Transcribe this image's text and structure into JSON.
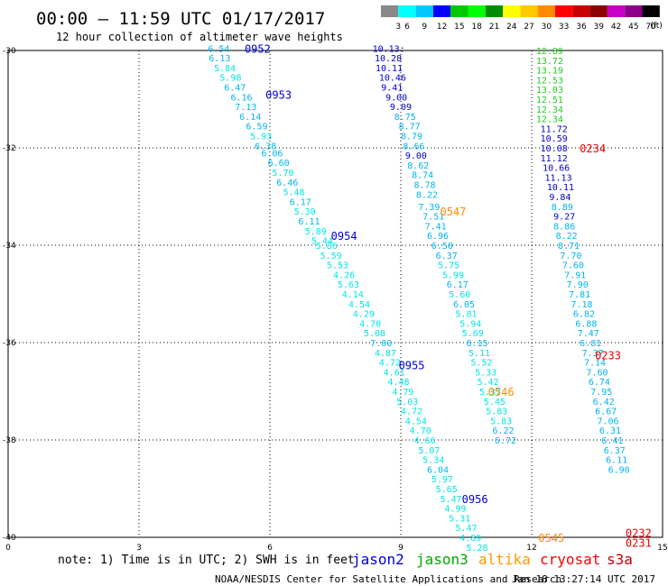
{
  "header": {
    "title": "00:00 – 11:59 UTC 01/17/2017",
    "subtitle": "12 hour collection of altimeter wave heights"
  },
  "colorbar": {
    "unit": "(ft)",
    "ticks": [
      "3",
      "6",
      "9",
      "12",
      "15",
      "18",
      "21",
      "24",
      "27",
      "30",
      "33",
      "36",
      "39",
      "42",
      "45",
      "70"
    ],
    "colors": [
      "#888888",
      "#00ffff",
      "#00c8ff",
      "#0000ff",
      "#00c800",
      "#00ff00",
      "#008c00",
      "#ffff00",
      "#ffc800",
      "#ff8c00",
      "#ff0000",
      "#c80000",
      "#8c0000",
      "#c800c8",
      "#8c008c",
      "#000000"
    ]
  },
  "footer": {
    "note": "note: 1) Time is in UTC; 2) SWH is in feet",
    "credit": "NOAA/NESDIS Center for Satellite Applications and Research",
    "timestamp": "Jan 18 13:27:14 UTC 2017",
    "legend": [
      {
        "name": "jason2",
        "color": "#0000dd"
      },
      {
        "name": "jason3",
        "color": "#00aa00"
      },
      {
        "name": "altika",
        "color": "#ff9900"
      },
      {
        "name": "cryosat",
        "color": "#ff0000"
      },
      {
        "name": "s3a",
        "color": "#cc0000"
      }
    ]
  },
  "chart_data": {
    "type": "scatter",
    "title": "00:00 – 11:59 UTC 01/17/2017",
    "subtitle": "12 hour collection of altimeter wave heights",
    "xlim": [
      0,
      15
    ],
    "ylim": [
      -40,
      -30
    ],
    "xticks": [
      "0",
      "3",
      "6",
      "9",
      "12",
      "15"
    ],
    "yticks": [
      "-30",
      "-32",
      "-34",
      "-36",
      "-38",
      "-40"
    ],
    "grid": true,
    "legend_position": "bottom",
    "series": [
      {
        "name": "jason2",
        "track_labels": [
          {
            "text": "0952",
            "x": 5.42,
            "y": -29.95
          },
          {
            "text": "0953",
            "x": 5.9,
            "y": -30.9
          },
          {
            "text": "0954",
            "x": 7.4,
            "y": -33.8
          },
          {
            "text": "0955",
            "x": 8.95,
            "y": -36.45
          },
          {
            "text": "0956",
            "x": 10.4,
            "y": -39.2
          }
        ],
        "points": [
          {
            "x": 4.58,
            "y": -29.95,
            "v": "6.54"
          },
          {
            "x": 4.6,
            "y": -30.15,
            "v": "6.13"
          },
          {
            "x": 4.72,
            "y": -30.35,
            "v": "5.84"
          },
          {
            "x": 4.85,
            "y": -30.55,
            "v": "5.98"
          },
          {
            "x": 4.95,
            "y": -30.75,
            "v": "6.47"
          },
          {
            "x": 5.1,
            "y": -30.95,
            "v": "6.16"
          },
          {
            "x": 5.2,
            "y": -31.15,
            "v": "7.13"
          },
          {
            "x": 5.3,
            "y": -31.35,
            "v": "6.14"
          },
          {
            "x": 5.45,
            "y": -31.55,
            "v": "6.59"
          },
          {
            "x": 5.55,
            "y": -31.75,
            "v": "5.93"
          },
          {
            "x": 5.65,
            "y": -31.95,
            "v": "6.38"
          },
          {
            "x": 5.8,
            "y": -32.1,
            "v": "6.06"
          },
          {
            "x": 5.95,
            "y": -32.3,
            "v": "6.60"
          },
          {
            "x": 6.05,
            "y": -32.5,
            "v": "5.70"
          },
          {
            "x": 6.15,
            "y": -32.7,
            "v": "6.46"
          },
          {
            "x": 6.3,
            "y": -32.9,
            "v": "5.48"
          },
          {
            "x": 6.45,
            "y": -33.1,
            "v": "6.17"
          },
          {
            "x": 6.55,
            "y": -33.3,
            "v": "5.30"
          },
          {
            "x": 6.65,
            "y": -33.5,
            "v": "6.11"
          },
          {
            "x": 6.8,
            "y": -33.7,
            "v": "5.89"
          },
          {
            "x": 6.95,
            "y": -33.9,
            "v": "5.44"
          },
          {
            "x": 7.05,
            "y": -34.0,
            "v": "5.86"
          },
          {
            "x": 7.15,
            "y": -34.2,
            "v": "5.59"
          },
          {
            "x": 7.3,
            "y": -34.4,
            "v": "5.53"
          },
          {
            "x": 7.45,
            "y": -34.6,
            "v": "4.26"
          },
          {
            "x": 7.55,
            "y": -34.8,
            "v": "5.63"
          },
          {
            "x": 7.65,
            "y": -35.0,
            "v": "4.14"
          },
          {
            "x": 7.8,
            "y": -35.2,
            "v": "4.54"
          },
          {
            "x": 7.9,
            "y": -35.4,
            "v": "4.29"
          },
          {
            "x": 8.05,
            "y": -35.6,
            "v": "4.70"
          },
          {
            "x": 8.15,
            "y": -35.8,
            "v": "5.08"
          },
          {
            "x": 8.3,
            "y": -36.0,
            "v": "7.00"
          },
          {
            "x": 8.4,
            "y": -36.2,
            "v": "4.87"
          },
          {
            "x": 8.5,
            "y": -36.4,
            "v": "4.72"
          },
          {
            "x": 8.6,
            "y": -36.6,
            "v": "4.61"
          },
          {
            "x": 8.7,
            "y": -36.8,
            "v": "4.48"
          },
          {
            "x": 8.8,
            "y": -37.0,
            "v": "4.79"
          },
          {
            "x": 8.9,
            "y": -37.2,
            "v": "5.03"
          },
          {
            "x": 9.0,
            "y": -37.4,
            "v": "4.72"
          },
          {
            "x": 9.1,
            "y": -37.6,
            "v": "4.54"
          },
          {
            "x": 9.2,
            "y": -37.8,
            "v": "4.70"
          },
          {
            "x": 9.3,
            "y": -38.0,
            "v": "4.66"
          },
          {
            "x": 9.4,
            "y": -38.2,
            "v": "5.07"
          },
          {
            "x": 9.5,
            "y": -38.4,
            "v": "5.34"
          },
          {
            "x": 9.6,
            "y": -38.6,
            "v": "6.04"
          },
          {
            "x": 9.7,
            "y": -38.8,
            "v": "5.97"
          },
          {
            "x": 9.8,
            "y": -39.0,
            "v": "5.65"
          },
          {
            "x": 9.9,
            "y": -39.2,
            "v": "5.47"
          },
          {
            "x": 10.0,
            "y": -39.4,
            "v": "4.99"
          },
          {
            "x": 10.1,
            "y": -39.6,
            "v": "5.31"
          },
          {
            "x": 10.25,
            "y": -39.8,
            "v": "5.47"
          },
          {
            "x": 10.35,
            "y": -40.0,
            "v": "4.89"
          },
          {
            "x": 10.5,
            "y": -40.2,
            "v": "5.28"
          }
        ]
      },
      {
        "name": "altika",
        "track_labels": [
          {
            "text": "0547",
            "x": 9.9,
            "y": -33.3
          },
          {
            "text": "0546",
            "x": 11.0,
            "y": -37.0
          },
          {
            "text": "0545",
            "x": 12.15,
            "y": -40.0
          }
        ],
        "points": [
          {
            "x": 8.35,
            "y": -29.95,
            "v": "10.13:"
          },
          {
            "x": 8.4,
            "y": -30.15,
            "v": "10.28"
          },
          {
            "x": 8.42,
            "y": -30.35,
            "v": "10.11"
          },
          {
            "x": 8.5,
            "y": -30.55,
            "v": "10.46"
          },
          {
            "x": 8.55,
            "y": -30.75,
            "v": "9.41"
          },
          {
            "x": 8.65,
            "y": -30.95,
            "v": "9.00"
          },
          {
            "x": 8.75,
            "y": -31.15,
            "v": "9.09"
          },
          {
            "x": 8.85,
            "y": -31.35,
            "v": "8.75"
          },
          {
            "x": 8.95,
            "y": -31.55,
            "v": "8.77"
          },
          {
            "x": 9.0,
            "y": -31.75,
            "v": "8.79"
          },
          {
            "x": 9.05,
            "y": -31.95,
            "v": "8.66"
          },
          {
            "x": 9.1,
            "y": -32.15,
            "v": "9.00"
          },
          {
            "x": 9.15,
            "y": -32.35,
            "v": "8.62"
          },
          {
            "x": 9.25,
            "y": -32.55,
            "v": "8.74"
          },
          {
            "x": 9.3,
            "y": -32.75,
            "v": "8.78"
          },
          {
            "x": 9.35,
            "y": -32.95,
            "v": "8.22"
          },
          {
            "x": 9.4,
            "y": -33.2,
            "v": "7.39"
          },
          {
            "x": 9.5,
            "y": -33.4,
            "v": "7.51"
          },
          {
            "x": 9.55,
            "y": -33.6,
            "v": "7.41"
          },
          {
            "x": 9.6,
            "y": -33.8,
            "v": "6.96"
          },
          {
            "x": 9.7,
            "y": -34.0,
            "v": "6.50"
          },
          {
            "x": 9.8,
            "y": -34.2,
            "v": "6.37"
          },
          {
            "x": 9.85,
            "y": -34.4,
            "v": "5.75"
          },
          {
            "x": 9.95,
            "y": -34.6,
            "v": "5.99"
          },
          {
            "x": 10.05,
            "y": -34.8,
            "v": "6.17"
          },
          {
            "x": 10.1,
            "y": -35.0,
            "v": "5.60"
          },
          {
            "x": 10.2,
            "y": -35.2,
            "v": "6.05"
          },
          {
            "x": 10.25,
            "y": -35.4,
            "v": "5.81"
          },
          {
            "x": 10.35,
            "y": -35.6,
            "v": "5.94"
          },
          {
            "x": 10.4,
            "y": -35.8,
            "v": "5.69"
          },
          {
            "x": 10.5,
            "y": -36.0,
            "v": "6.15"
          },
          {
            "x": 10.55,
            "y": -36.2,
            "v": "5.11"
          },
          {
            "x": 10.6,
            "y": -36.4,
            "v": "5.52"
          },
          {
            "x": 10.7,
            "y": -36.6,
            "v": "5.33"
          },
          {
            "x": 10.75,
            "y": -36.8,
            "v": "5.42"
          },
          {
            "x": 10.8,
            "y": -37.0,
            "v": "5.37"
          },
          {
            "x": 10.9,
            "y": -37.2,
            "v": "5.45"
          },
          {
            "x": 10.95,
            "y": -37.4,
            "v": "5.83"
          },
          {
            "x": 11.05,
            "y": -37.6,
            "v": "5.83"
          },
          {
            "x": 11.1,
            "y": -37.8,
            "v": "6.22"
          },
          {
            "x": 11.15,
            "y": -38.0,
            "v": "6.72"
          }
        ]
      },
      {
        "name": "cryosat",
        "track_labels": [
          {
            "text": "0234",
            "x": 13.1,
            "y": -32.0
          },
          {
            "text": "0233",
            "x": 13.45,
            "y": -36.25
          },
          {
            "text": "0232",
            "x": 14.15,
            "y": -39.9
          },
          {
            "text": "0231",
            "x": 14.15,
            "y": -40.1
          }
        ],
        "points": [
          {
            "x": 12.1,
            "y": -30.0,
            "v": "12.89"
          },
          {
            "x": 12.1,
            "y": -30.2,
            "v": "13.72"
          },
          {
            "x": 12.1,
            "y": -30.4,
            "v": "13.19"
          },
          {
            "x": 12.1,
            "y": -30.6,
            "v": "12.53"
          },
          {
            "x": 12.1,
            "y": -30.8,
            "v": "13.03"
          },
          {
            "x": 12.1,
            "y": -31.0,
            "v": "12.51"
          },
          {
            "x": 12.1,
            "y": -31.2,
            "v": "12.34"
          },
          {
            "x": 12.1,
            "y": -31.4,
            "v": "12.34"
          },
          {
            "x": 12.2,
            "y": -31.6,
            "v": "11.72"
          },
          {
            "x": 12.2,
            "y": -31.8,
            "v": "10.59"
          },
          {
            "x": 12.2,
            "y": -32.0,
            "v": "10.08"
          },
          {
            "x": 12.2,
            "y": -32.2,
            "v": "11.12"
          },
          {
            "x": 12.25,
            "y": -32.4,
            "v": "10.66"
          },
          {
            "x": 12.3,
            "y": -32.6,
            "v": "11.13"
          },
          {
            "x": 12.35,
            "y": -32.8,
            "v": "10.11"
          },
          {
            "x": 12.4,
            "y": -33.0,
            "v": "9.84"
          },
          {
            "x": 12.45,
            "y": -33.2,
            "v": "8.89"
          },
          {
            "x": 12.5,
            "y": -33.4,
            "v": "9.27"
          },
          {
            "x": 12.5,
            "y": -33.6,
            "v": "8.86"
          },
          {
            "x": 12.55,
            "y": -33.8,
            "v": "8.22"
          },
          {
            "x": 12.6,
            "y": -34.0,
            "v": "8.71"
          },
          {
            "x": 12.65,
            "y": -34.2,
            "v": "7.70"
          },
          {
            "x": 12.7,
            "y": -34.4,
            "v": "7.60"
          },
          {
            "x": 12.75,
            "y": -34.6,
            "v": "7.91"
          },
          {
            "x": 12.8,
            "y": -34.8,
            "v": "7.90"
          },
          {
            "x": 12.85,
            "y": -35.0,
            "v": "7.81"
          },
          {
            "x": 12.9,
            "y": -35.2,
            "v": "7.18"
          },
          {
            "x": 12.95,
            "y": -35.4,
            "v": "6.82"
          },
          {
            "x": 13.0,
            "y": -35.6,
            "v": "6.88"
          },
          {
            "x": 13.05,
            "y": -35.8,
            "v": "7.47"
          },
          {
            "x": 13.1,
            "y": -36.0,
            "v": "6.81"
          },
          {
            "x": 13.15,
            "y": -36.2,
            "v": "7.37"
          },
          {
            "x": 13.2,
            "y": -36.4,
            "v": "7.14"
          },
          {
            "x": 13.25,
            "y": -36.6,
            "v": "7.60"
          },
          {
            "x": 13.3,
            "y": -36.8,
            "v": "6.74"
          },
          {
            "x": 13.35,
            "y": -37.0,
            "v": "7.95"
          },
          {
            "x": 13.4,
            "y": -37.2,
            "v": "6.42"
          },
          {
            "x": 13.45,
            "y": -37.4,
            "v": "6.67"
          },
          {
            "x": 13.5,
            "y": -37.6,
            "v": "7.06"
          },
          {
            "x": 13.55,
            "y": -37.8,
            "v": "6.31"
          },
          {
            "x": 13.6,
            "y": -38.0,
            "v": "6.41"
          },
          {
            "x": 13.65,
            "y": -38.2,
            "v": "6.37"
          },
          {
            "x": 13.7,
            "y": -38.4,
            "v": "6.11"
          },
          {
            "x": 13.75,
            "y": -38.6,
            "v": "6.90"
          }
        ]
      }
    ]
  }
}
